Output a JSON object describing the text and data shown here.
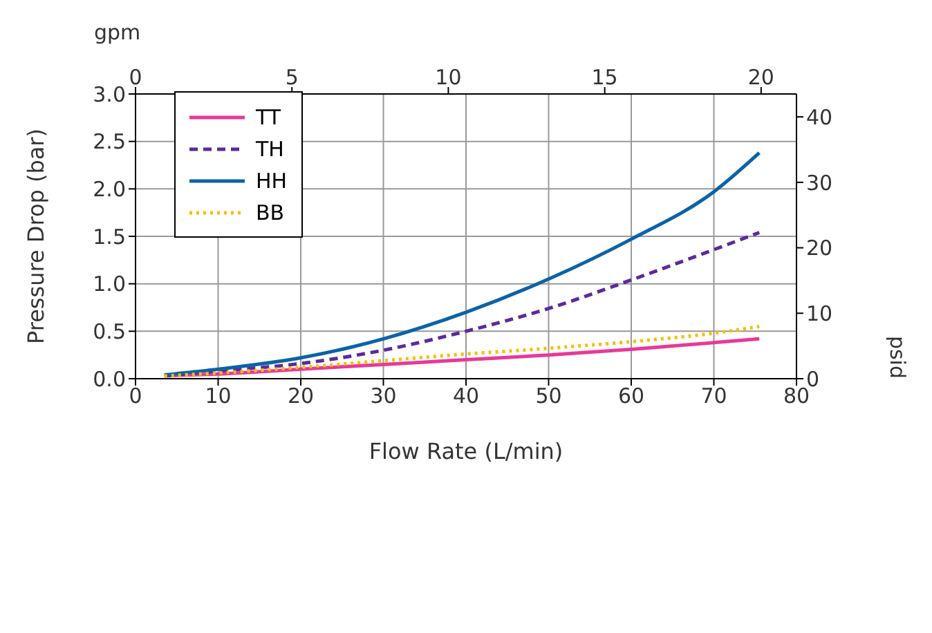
{
  "chart_data": {
    "type": "line",
    "xlabel": "Flow Rate (L/min)",
    "ylabel": "Pressure Drop (bar)",
    "x2label": "gpm",
    "y2label": "psid",
    "xlim": [
      0,
      80
    ],
    "xticks": [
      0,
      10,
      20,
      30,
      40,
      50,
      60,
      70,
      80
    ],
    "ylim": [
      0,
      3.0
    ],
    "yticks": [
      {
        "value": 0,
        "label": "0.0"
      },
      {
        "value": 0.5,
        "label": "0.5"
      },
      {
        "value": 1,
        "label": "1.0"
      },
      {
        "value": 1.5,
        "label": "1.5"
      },
      {
        "value": 2,
        "label": "2.0"
      },
      {
        "value": 2.5,
        "label": "2.5"
      },
      {
        "value": 3,
        "label": "3.0"
      }
    ],
    "x2lim": [
      0,
      21.13
    ],
    "x2ticks": [
      0,
      5,
      10,
      15,
      20
    ],
    "y2lim": [
      0,
      43.5
    ],
    "y2ticks": [
      0,
      10,
      20,
      30,
      40
    ],
    "grid": true,
    "legend": "top left",
    "series": [
      {
        "name": "TT",
        "color": "#e8399a",
        "line_style": "solid",
        "x": [
          3.5,
          10,
          20,
          30,
          40,
          50,
          60,
          70,
          75.5
        ],
        "values": [
          0.03,
          0.05,
          0.1,
          0.15,
          0.2,
          0.25,
          0.31,
          0.38,
          0.42
        ]
      },
      {
        "name": "TH",
        "color": "#5b2a9e",
        "line_style": "dashed",
        "x": [
          3.5,
          10,
          20,
          30,
          40,
          50,
          60,
          70,
          75.5
        ],
        "values": [
          0.03,
          0.08,
          0.16,
          0.3,
          0.5,
          0.74,
          1.04,
          1.36,
          1.54
        ]
      },
      {
        "name": "HH",
        "color": "#0b63a8",
        "line_style": "solid",
        "x": [
          3.5,
          10,
          20,
          30,
          40,
          50,
          60,
          70,
          75.5
        ],
        "values": [
          0.04,
          0.1,
          0.22,
          0.42,
          0.7,
          1.05,
          1.47,
          1.97,
          2.38
        ]
      },
      {
        "name": "BB",
        "color": "#f5c000",
        "line_style": "dotted",
        "x": [
          3.5,
          10,
          20,
          30,
          40,
          50,
          60,
          70,
          75.5
        ],
        "values": [
          0.03,
          0.06,
          0.12,
          0.19,
          0.26,
          0.32,
          0.39,
          0.48,
          0.55
        ]
      }
    ]
  }
}
